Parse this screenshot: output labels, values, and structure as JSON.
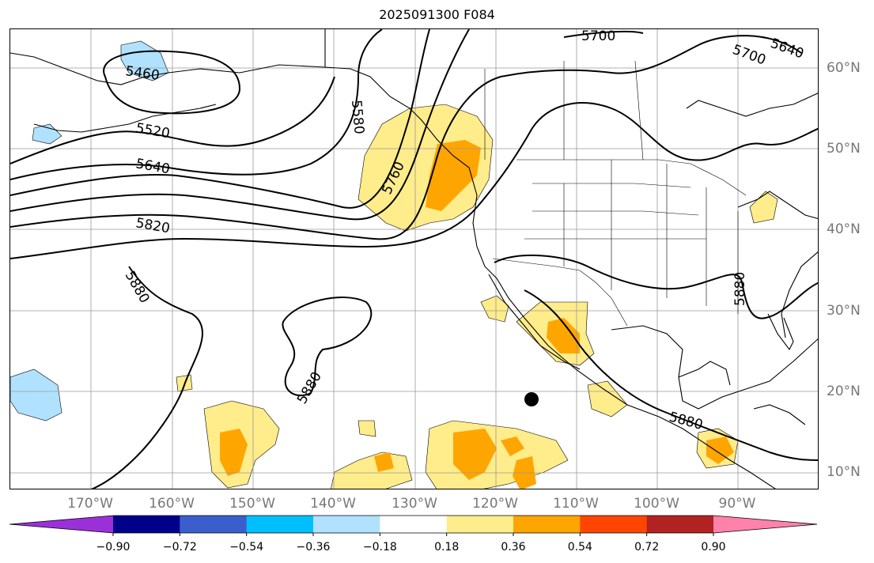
{
  "title": "2025091300 F084",
  "lon_labels": [
    "170°W",
    "160°W",
    "150°W",
    "140°W",
    "130°W",
    "120°W",
    "110°W",
    "100°W",
    "90°W"
  ],
  "lat_labels": [
    "60°N",
    "50°N",
    "40°N",
    "30°N",
    "20°N",
    "10°N"
  ],
  "contour_labels": [
    "5460",
    "5520",
    "5580",
    "5640",
    "5700",
    "5700",
    "5640",
    "5760",
    "5820",
    "5880",
    "5880",
    "5880",
    "5880"
  ],
  "colorbar": {
    "ticks": [
      "−0.90",
      "−0.72",
      "−0.54",
      "−0.36",
      "−0.18",
      "0.18",
      "0.36",
      "0.54",
      "0.72",
      "0.90"
    ],
    "colors": [
      "#9b30d9",
      "#00008b",
      "#3a5fcd",
      "#00bfff",
      "#b0e2ff",
      "#ffffff",
      "#ffec8b",
      "#ffa500",
      "#ff4500",
      "#b22222",
      "#ff82ab"
    ]
  }
}
